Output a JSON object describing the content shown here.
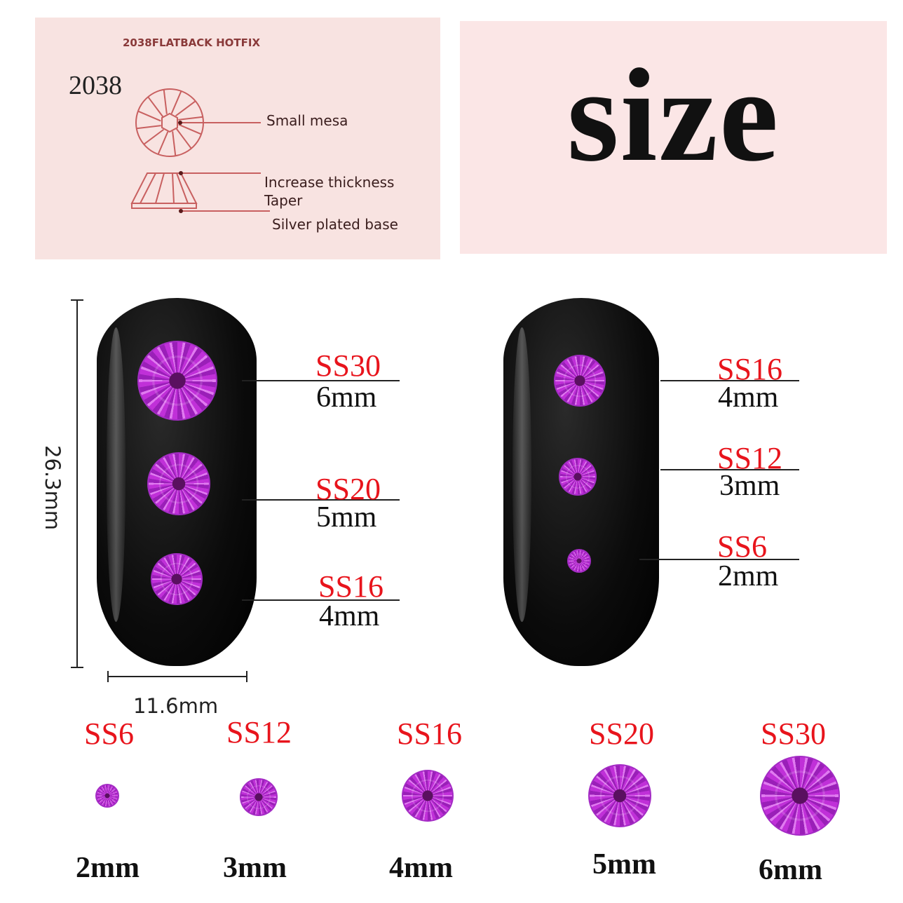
{
  "diagram": {
    "header": "2038FLATBACK HOTFIX",
    "model": "2038",
    "labels": [
      "Small mesa",
      "Increase thickness",
      "Taper",
      "Silver plated base"
    ],
    "line_color": "#c86060"
  },
  "title": "size",
  "dimensions": {
    "height": "26.3mm",
    "width": "11.6mm"
  },
  "nail_left": [
    {
      "ss": "SS30",
      "mm": "6mm"
    },
    {
      "ss": "SS20",
      "mm": "5mm"
    },
    {
      "ss": "SS16",
      "mm": "4mm"
    }
  ],
  "nail_right": [
    {
      "ss": "SS16",
      "mm": "4mm"
    },
    {
      "ss": "SS12",
      "mm": "3mm"
    },
    {
      "ss": "SS6",
      "mm": "2mm"
    }
  ],
  "size_row": [
    {
      "ss": "SS6",
      "mm": "2mm"
    },
    {
      "ss": "SS12",
      "mm": "3mm"
    },
    {
      "ss": "SS16",
      "mm": "4mm"
    },
    {
      "ss": "SS20",
      "mm": "5mm"
    },
    {
      "ss": "SS30",
      "mm": "6mm"
    }
  ],
  "colors": {
    "ss_label": "#e8141c",
    "crystal": "#c030d8",
    "panel": "#f8e3e1"
  }
}
